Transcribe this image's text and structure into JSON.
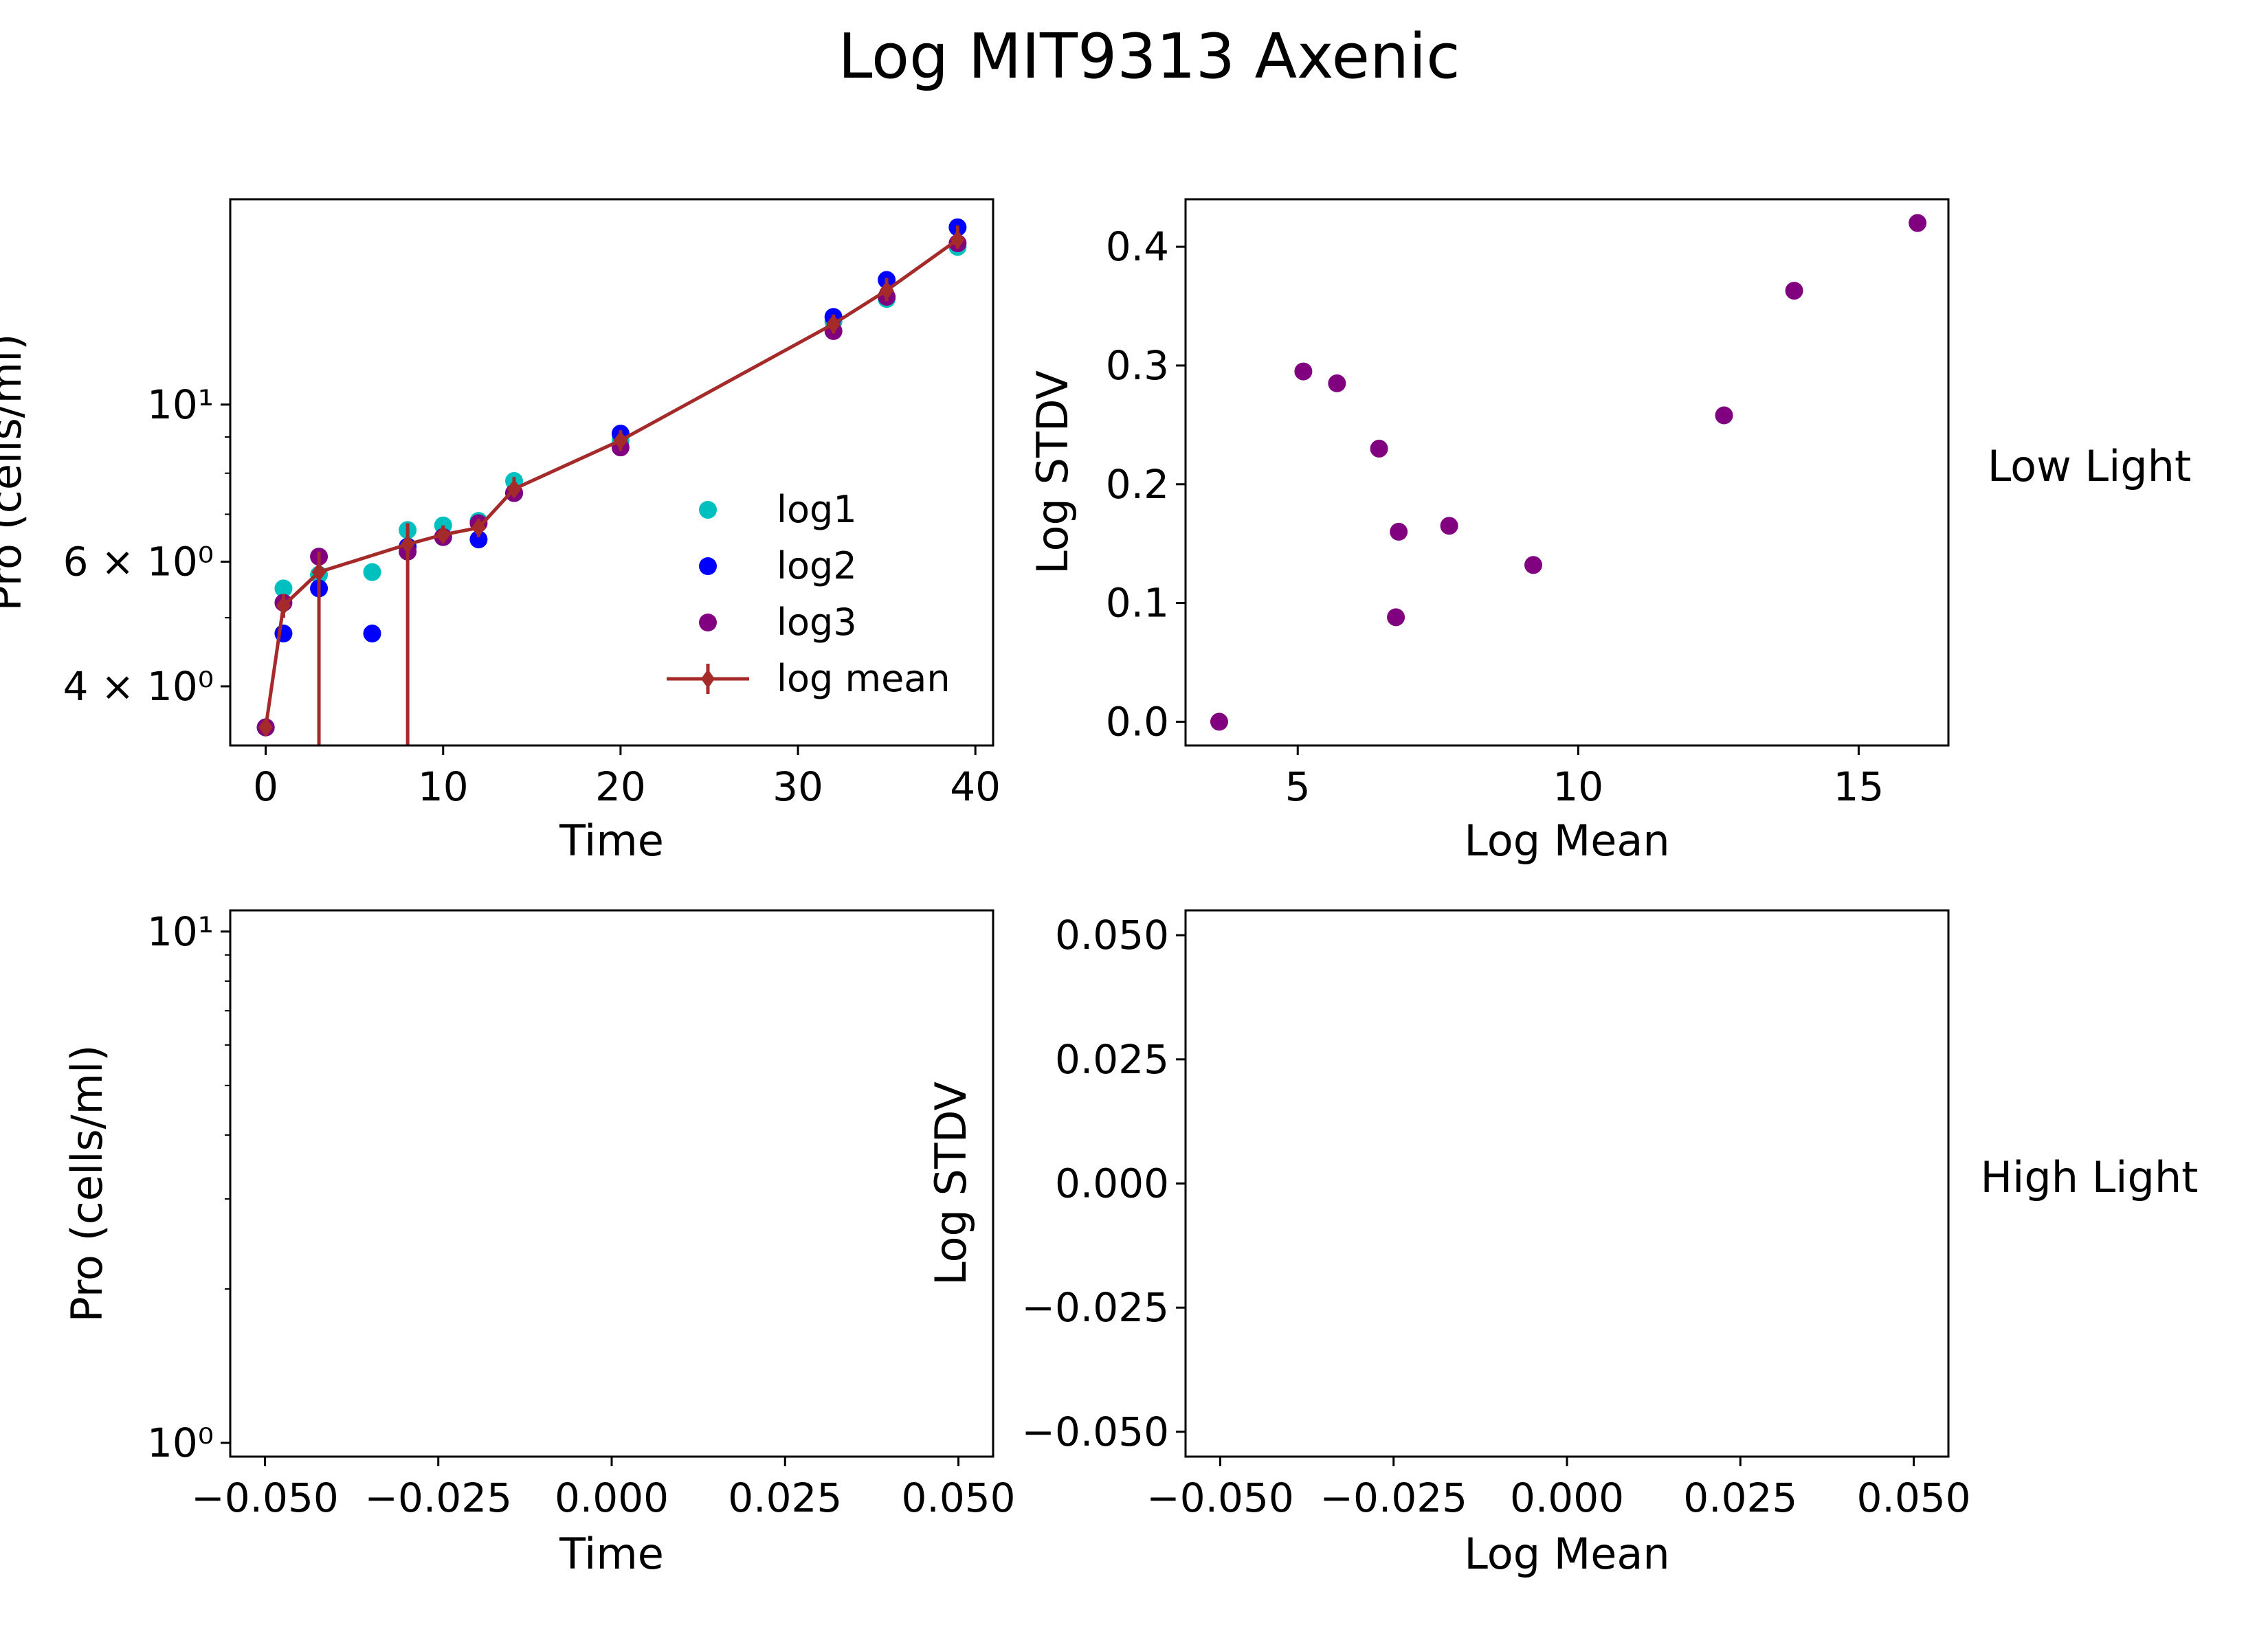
{
  "figure": {
    "title": "Log MIT9313 Axenic",
    "row_labels": [
      "Low Light",
      "High Light"
    ]
  },
  "colors": {
    "log1": "#00BFBF",
    "log2": "#0000FF",
    "log3": "#800080",
    "log_mean": "#A52A2A",
    "stdv_points": "#800080"
  },
  "chart_data": [
    {
      "id": "low-growth",
      "type": "scatter",
      "xlabel": "Time",
      "ylabel": "Pro (cells/ml)",
      "yscale": "log",
      "xlim": [
        -2,
        41
      ],
      "ylim": [
        3.3,
        19.5
      ],
      "xticks": [
        0,
        10,
        20,
        30,
        40
      ],
      "xtick_labels": [
        "0",
        "10",
        "20",
        "30",
        "40"
      ],
      "yticks": [
        4,
        6,
        10
      ],
      "ytick_labels": [
        "4 × 10⁰",
        "6 × 10⁰",
        "10¹"
      ],
      "legend": "lower right",
      "series": [
        {
          "name": "log1",
          "kind": "points",
          "x": [
            0,
            1,
            3,
            6,
            8,
            10,
            12,
            14,
            20,
            32,
            35,
            39
          ],
          "y": [
            3.5,
            5.5,
            5.75,
            5.8,
            6.65,
            6.75,
            6.85,
            7.8,
            8.9,
            13.1,
            14.1,
            16.7
          ]
        },
        {
          "name": "log2",
          "kind": "points",
          "x": [
            0,
            1,
            3,
            6,
            8,
            10,
            12,
            14,
            20,
            32,
            35,
            39
          ],
          "y": [
            3.5,
            4.75,
            5.5,
            4.75,
            6.3,
            6.5,
            6.45,
            7.5,
            9.1,
            13.3,
            15.0,
            17.8
          ]
        },
        {
          "name": " log3",
          "kind": "points",
          "x": [
            0,
            1,
            3,
            8,
            10,
            12,
            14,
            20,
            32,
            35,
            39
          ],
          "y": [
            3.5,
            5.25,
            6.1,
            6.2,
            6.5,
            6.8,
            7.5,
            8.7,
            12.7,
            14.2,
            16.9
          ]
        },
        {
          "name": "log mean",
          "kind": "errorline",
          "x": [
            0,
            1,
            3,
            8,
            10,
            12,
            14,
            20,
            32,
            35,
            39
          ],
          "y": [
            3.5,
            5.2,
            5.8,
            6.35,
            6.55,
            6.7,
            7.6,
            8.9,
            13.0,
            14.5,
            17.1
          ],
          "yerr_low": [
            3.5,
            5.0,
            0.5,
            0.5,
            6.4,
            6.5,
            7.4,
            8.6,
            12.6,
            14.0,
            16.6
          ],
          "yerr_high": [
            3.5,
            5.4,
            6.2,
            6.8,
            6.75,
            6.9,
            7.9,
            9.2,
            13.4,
            15.1,
            17.9
          ]
        }
      ]
    },
    {
      "id": "low-stdv",
      "type": "scatter",
      "xlabel": "Log Mean",
      "ylabel": "Log STDV",
      "xlim": [
        3,
        16.6
      ],
      "ylim": [
        -0.02,
        0.44
      ],
      "xticks": [
        5,
        10,
        15
      ],
      "xtick_labels": [
        "5",
        "10",
        "15"
      ],
      "yticks": [
        0.0,
        0.1,
        0.2,
        0.3,
        0.4
      ],
      "ytick_labels": [
        "0.0",
        "0.1",
        "0.2",
        "0.3",
        "0.4"
      ],
      "series": [
        {
          "name": "",
          "x": [
            3.6,
            5.1,
            5.7,
            6.45,
            6.75,
            6.8,
            7.7,
            9.2,
            12.6,
            13.85,
            16.05
          ],
          "y": [
            0.0,
            0.295,
            0.285,
            0.23,
            0.088,
            0.16,
            0.165,
            0.132,
            0.258,
            0.363,
            0.42
          ]
        }
      ]
    },
    {
      "id": "high-growth",
      "type": "scatter",
      "xlabel": "Time",
      "ylabel": "Pro (cells/ml)",
      "yscale": "log",
      "xlim": [
        -0.055,
        0.055
      ],
      "ylim": [
        0.94,
        11.0
      ],
      "xticks": [
        -0.05,
        -0.025,
        0.0,
        0.025,
        0.05
      ],
      "xtick_labels": [
        "−0.050",
        "−0.025",
        "0.000",
        "0.025",
        "0.050"
      ],
      "yticks": [
        1,
        10
      ],
      "ytick_labels": [
        "10⁰",
        "10¹"
      ],
      "series": []
    },
    {
      "id": "high-stdv",
      "type": "scatter",
      "xlabel": "Log Mean",
      "ylabel": "Log STDV",
      "xlim": [
        -0.055,
        0.055
      ],
      "ylim": [
        -0.055,
        0.055
      ],
      "xticks": [
        -0.05,
        -0.025,
        0.0,
        0.025,
        0.05
      ],
      "xtick_labels": [
        "−0.050",
        "−0.025",
        "0.000",
        "0.025",
        "0.050"
      ],
      "yticks": [
        -0.05,
        -0.025,
        0.0,
        0.025,
        0.05
      ],
      "ytick_labels": [
        "−0.050",
        "−0.025",
        "0.000",
        "0.025",
        "0.050"
      ],
      "series": []
    }
  ]
}
